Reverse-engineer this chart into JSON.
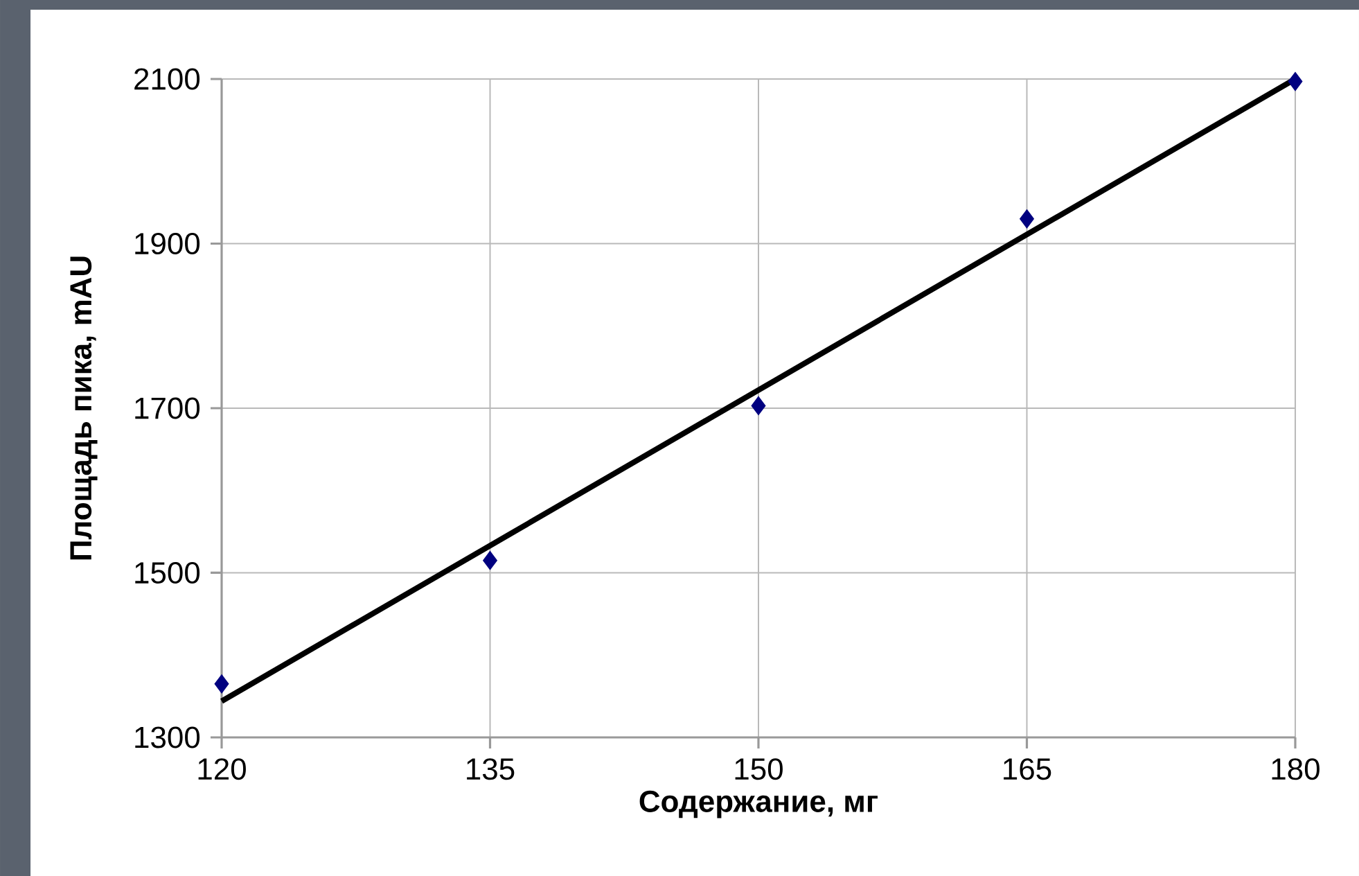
{
  "chart_data": {
    "type": "scatter",
    "xlabel": "Содержание, мг",
    "ylabel": "Площадь пика, mAU",
    "xlim": [
      120,
      180
    ],
    "xticks": [
      120,
      135,
      150,
      165,
      180
    ],
    "ylim": [
      1300,
      2100
    ],
    "yticks": [
      1300,
      1500,
      1700,
      1900,
      2100
    ],
    "grid": true,
    "series": [
      {
        "color": "#000080",
        "marker": "diamond",
        "x": [
          120,
          135,
          150,
          165,
          180
        ],
        "values": [
          1365,
          1515,
          1703,
          1930,
          2097
        ]
      },
      {
        "type": "line",
        "color": "#000000",
        "marker": "none",
        "line_style": "solid",
        "x": [
          120,
          180
        ],
        "values": [
          1344,
          2100
        ]
      }
    ]
  }
}
